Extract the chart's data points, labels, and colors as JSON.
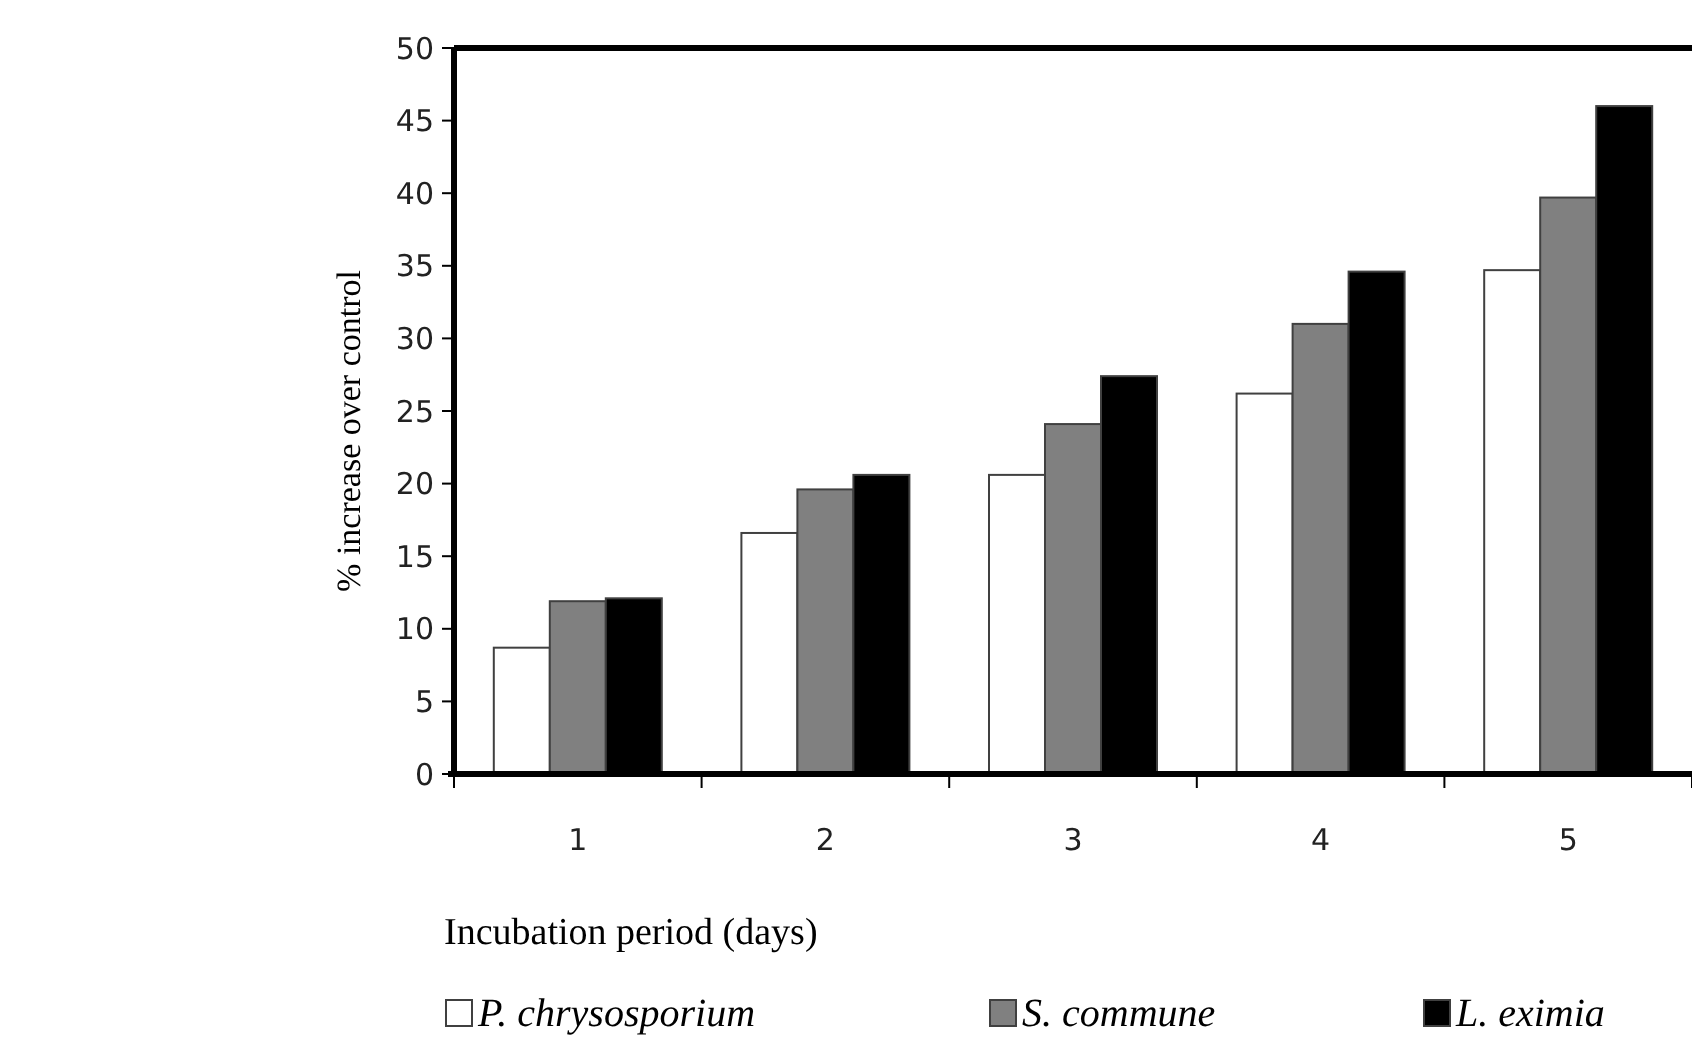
{
  "chart_data": {
    "type": "bar",
    "xlabel": "Incubation period (days)",
    "ylabel": "% increase over control",
    "categories": [
      "1",
      "2",
      "3",
      "4",
      "5"
    ],
    "series": [
      {
        "name": "P. chrysosporium",
        "color": "#ffffff",
        "values": [
          8.7,
          16.6,
          20.6,
          26.2,
          34.7
        ]
      },
      {
        "name": "S. commune",
        "color": "#808080",
        "values": [
          11.9,
          19.6,
          24.1,
          31.0,
          39.7
        ]
      },
      {
        "name": "L. eximia",
        "color": "#000000",
        "values": [
          12.1,
          20.6,
          27.4,
          34.6,
          46.0
        ]
      }
    ],
    "ylim": [
      0,
      50
    ],
    "yticks": [
      0,
      5,
      10,
      15,
      20,
      25,
      30,
      35,
      40,
      45,
      50
    ],
    "grid": false,
    "legend": "bottom"
  }
}
